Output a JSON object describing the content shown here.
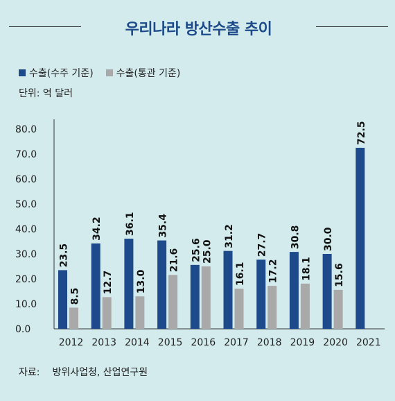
{
  "title": "우리나라 방산수출 추이",
  "legend": {
    "series1": "수출(수주 기준)",
    "series2": "수출(통관 기준)"
  },
  "unit_label": "단위: 억 달러",
  "source": {
    "label": "자료:",
    "text": "방위사업청, 산업연구원"
  },
  "colors": {
    "background": "#d3ebed",
    "series1": "#1c4a8a",
    "series2": "#a9a9a9",
    "title": "#1c4a8a"
  },
  "chart_data": {
    "type": "bar",
    "categories": [
      "2012",
      "2013",
      "2014",
      "2015",
      "2016",
      "2017",
      "2018",
      "2019",
      "2020",
      "2021"
    ],
    "series": [
      {
        "name": "수출(수주 기준)",
        "values": [
          23.5,
          34.2,
          36.1,
          35.4,
          25.6,
          31.2,
          27.7,
          30.8,
          30.0,
          72.5
        ],
        "labels": [
          "23.5",
          "34.2",
          "36.1",
          "35.4",
          "25.6",
          "31.2",
          "27.7",
          "30.8",
          "30.0",
          "72.5"
        ]
      },
      {
        "name": "수출(통관 기준)",
        "values": [
          8.5,
          12.7,
          13.0,
          21.6,
          25.0,
          16.1,
          17.2,
          18.1,
          15.6,
          null
        ],
        "labels": [
          "8.5",
          "12.7",
          "13.0",
          "21.6",
          "25.0",
          "16.1",
          "17.2",
          "18.1",
          "15.6",
          null
        ]
      }
    ],
    "yticks": [
      "0.0",
      "10.0",
      "20.0",
      "30.0",
      "40.0",
      "50.0",
      "60.0",
      "70.0",
      "80.0"
    ],
    "ylim": [
      0,
      80
    ],
    "grid": false,
    "legend_position": "top-left"
  }
}
